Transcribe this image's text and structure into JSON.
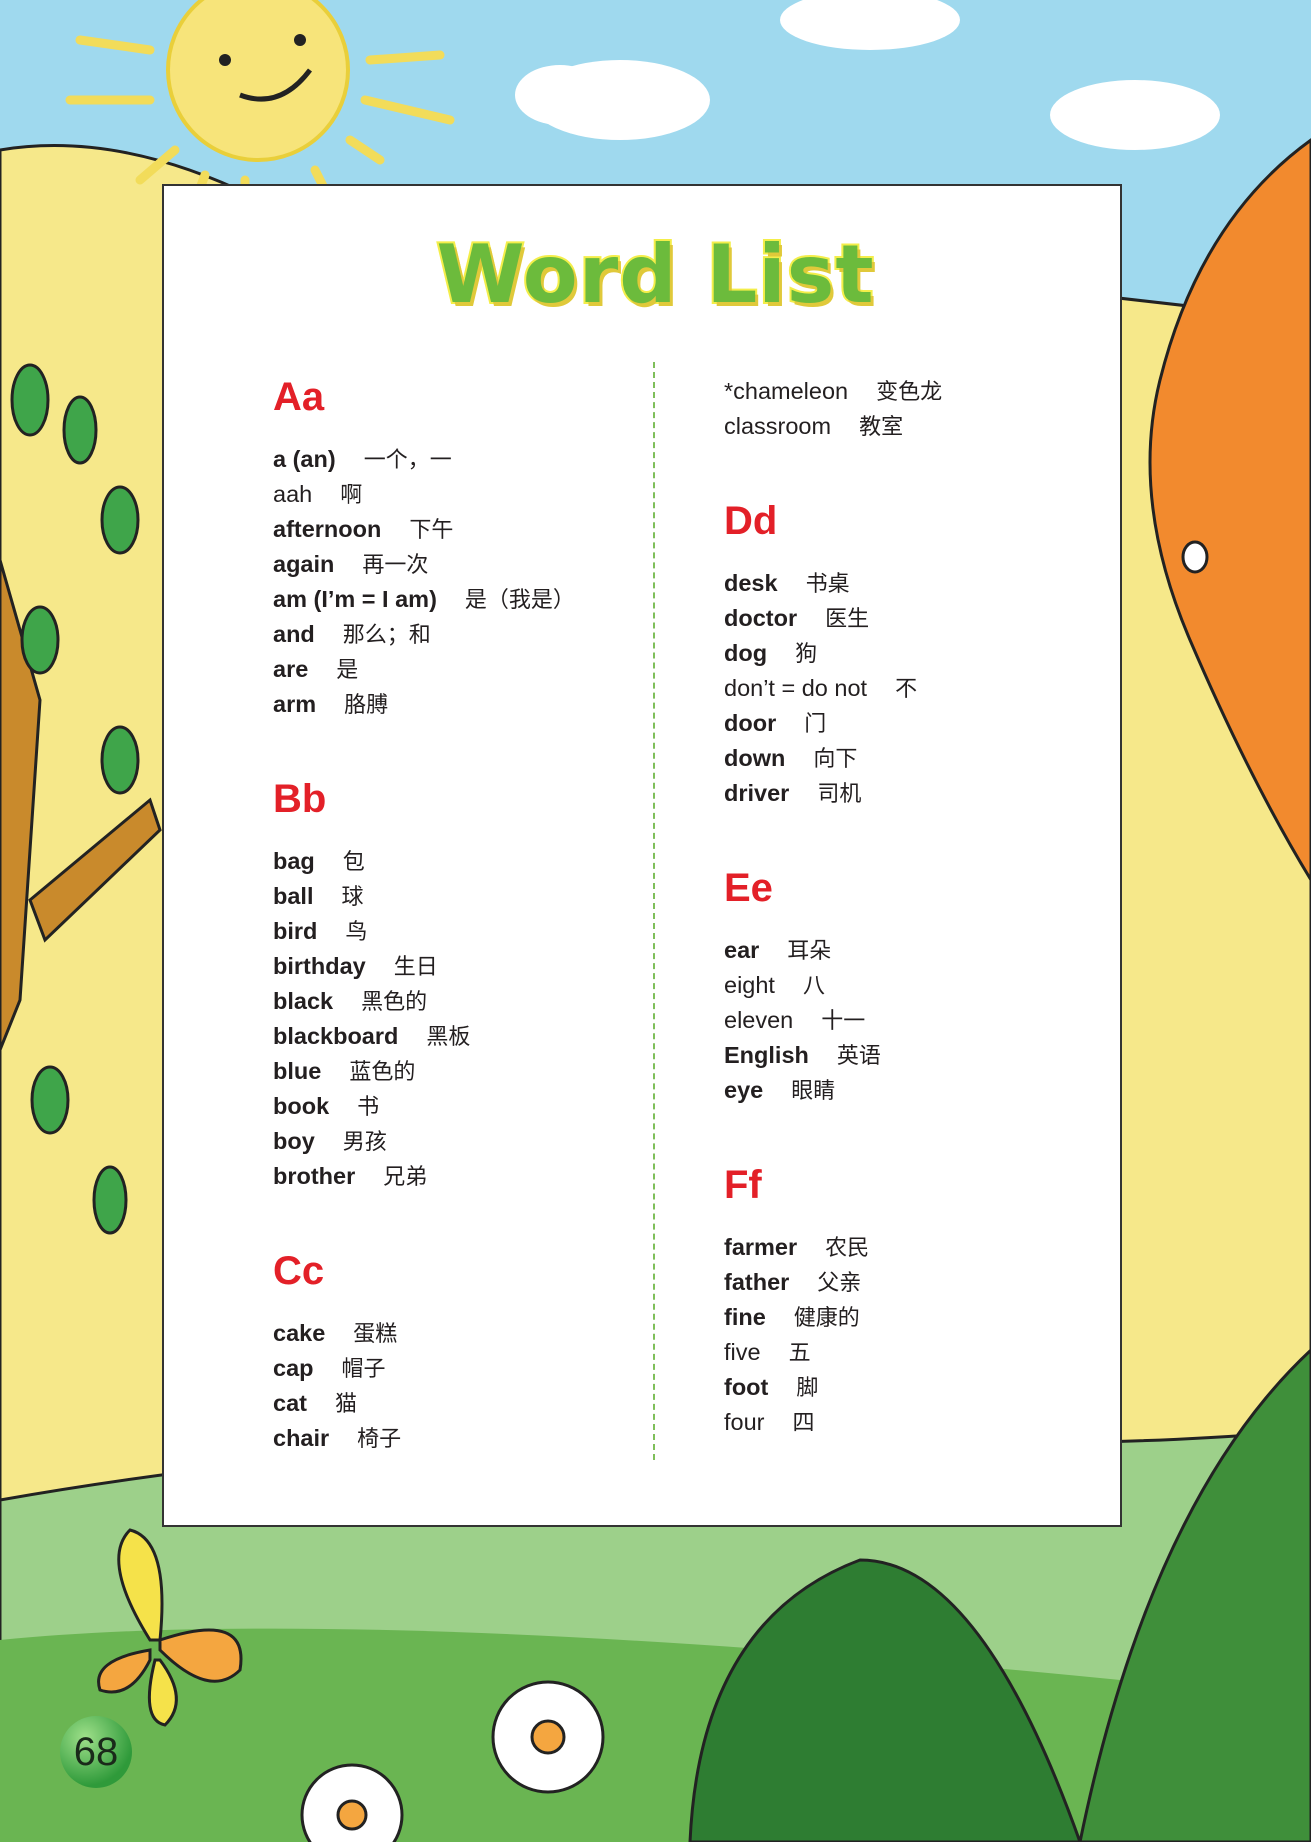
{
  "title": "Word List",
  "page_number": "68",
  "colors": {
    "heading": "#e32028",
    "title_fill": "#6cbb3c",
    "title_outline": "#f4ee4a",
    "sky": "#9fd9ee"
  },
  "left_column": [
    {
      "heading": "Aa",
      "entries": [
        {
          "word": "a (an)",
          "meaning": "一个，一",
          "bold": true
        },
        {
          "word": "aah",
          "meaning": "啊",
          "bold": false
        },
        {
          "word": "afternoon",
          "meaning": "下午",
          "bold": true
        },
        {
          "word": "again",
          "meaning": "再一次",
          "bold": true
        },
        {
          "word": "am (I’m = I am)",
          "meaning": "是（我是）",
          "bold": true
        },
        {
          "word": "and",
          "meaning": "那么；和",
          "bold": true
        },
        {
          "word": "are",
          "meaning": "是",
          "bold": true
        },
        {
          "word": "arm",
          "meaning": "胳膊",
          "bold": true
        }
      ]
    },
    {
      "heading": "Bb",
      "entries": [
        {
          "word": "bag",
          "meaning": "包",
          "bold": true
        },
        {
          "word": "ball",
          "meaning": "球",
          "bold": true
        },
        {
          "word": "bird",
          "meaning": "鸟",
          "bold": true
        },
        {
          "word": "birthday",
          "meaning": "生日",
          "bold": true
        },
        {
          "word": "black",
          "meaning": "黑色的",
          "bold": true
        },
        {
          "word": "blackboard",
          "meaning": "黑板",
          "bold": true
        },
        {
          "word": "blue",
          "meaning": "蓝色的",
          "bold": true
        },
        {
          "word": "book",
          "meaning": "书",
          "bold": true
        },
        {
          "word": "boy",
          "meaning": "男孩",
          "bold": true
        },
        {
          "word": "brother",
          "meaning": "兄弟",
          "bold": true
        }
      ]
    },
    {
      "heading": "Cc",
      "entries": [
        {
          "word": "cake",
          "meaning": "蛋糕",
          "bold": true
        },
        {
          "word": "cap",
          "meaning": "帽子",
          "bold": true
        },
        {
          "word": "cat",
          "meaning": "猫",
          "bold": true
        },
        {
          "word": "chair",
          "meaning": "椅子",
          "bold": true
        }
      ]
    }
  ],
  "right_column": [
    {
      "heading": "",
      "entries": [
        {
          "word": "*chameleon",
          "meaning": "变色龙",
          "bold": false
        },
        {
          "word": "classroom",
          "meaning": "教室",
          "bold": false
        }
      ]
    },
    {
      "heading": "Dd",
      "entries": [
        {
          "word": "desk",
          "meaning": "书桌",
          "bold": true
        },
        {
          "word": "doctor",
          "meaning": "医生",
          "bold": true
        },
        {
          "word": "dog",
          "meaning": "狗",
          "bold": true
        },
        {
          "word": "don’t = do not",
          "meaning": "不",
          "bold": false
        },
        {
          "word": "door",
          "meaning": "门",
          "bold": true
        },
        {
          "word": "down",
          "meaning": "向下",
          "bold": true
        },
        {
          "word": "driver",
          "meaning": "司机",
          "bold": true
        }
      ]
    },
    {
      "heading": "Ee",
      "entries": [
        {
          "word": "ear",
          "meaning": "耳朵",
          "bold": true
        },
        {
          "word": "eight",
          "meaning": "八",
          "bold": false
        },
        {
          "word": "eleven",
          "meaning": "十一",
          "bold": false
        },
        {
          "word": "English",
          "meaning": "英语",
          "bold": true
        },
        {
          "word": "eye",
          "meaning": "眼睛",
          "bold": true
        }
      ]
    },
    {
      "heading": "Ff",
      "entries": [
        {
          "word": "farmer",
          "meaning": "农民",
          "bold": true
        },
        {
          "word": "father",
          "meaning": "父亲",
          "bold": true
        },
        {
          "word": "fine",
          "meaning": "健康的",
          "bold": true
        },
        {
          "word": "five",
          "meaning": "五",
          "bold": false
        },
        {
          "word": "foot",
          "meaning": "脚",
          "bold": true
        },
        {
          "word": "four",
          "meaning": "四",
          "bold": false
        }
      ]
    }
  ]
}
